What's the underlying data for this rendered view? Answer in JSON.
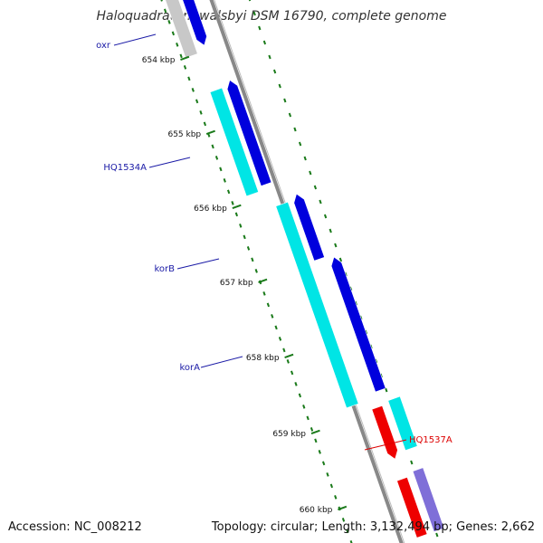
{
  "title": "Haloquadratum walsbyi DSM 16790, complete genome",
  "footer": {
    "accession": "Accession: NC_008212",
    "summary": "Topology: circular; Length: 3,132,494 bp; Genes: 2,662"
  },
  "colors": {
    "backbone": "#888888",
    "tick": "#1a7a1a",
    "forward_cds": "#0000dd",
    "reverse_cds": "#00e5e5",
    "other_cds_red": "#ee0000",
    "faded_forward": "#7f6fd8",
    "faded_reverse": "#c8c8c8",
    "label_blue": "#1a1aa6",
    "label_red": "#dd0000"
  },
  "scale_labels": [
    "654 kbp",
    "655 kbp",
    "656 kbp",
    "657 kbp",
    "658 kbp",
    "659 kbp",
    "660 kbp"
  ],
  "gene_labels": [
    {
      "name": "oxr",
      "color": "label_blue"
    },
    {
      "name": "HQ1534A",
      "color": "label_blue"
    },
    {
      "name": "korB",
      "color": "label_blue"
    },
    {
      "name": "korA",
      "color": "label_blue"
    },
    {
      "name": "HQ1537A",
      "color": "label_red"
    }
  ]
}
